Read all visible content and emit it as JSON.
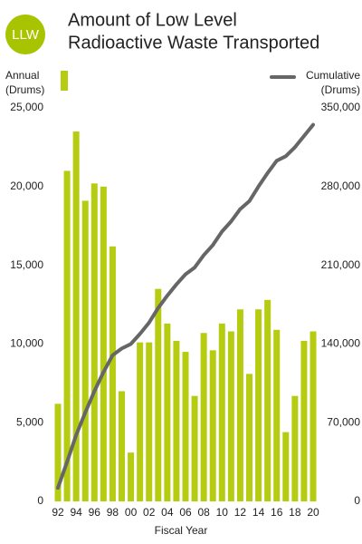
{
  "chart_data": {
    "type": "combo",
    "badge": "LLW",
    "title": [
      "Amount of Low Level",
      "Radioactive Waste Transported"
    ],
    "y_label": [
      "Annual",
      "(Drums)"
    ],
    "y2_label": [
      "Cumulative",
      "(Drums)"
    ],
    "x_label": "Fiscal Year",
    "categories": [
      "92",
      null,
      "94",
      null,
      "96",
      null,
      "98",
      null,
      "00",
      null,
      "02",
      null,
      "04",
      null,
      "06",
      null,
      "08",
      null,
      "10",
      null,
      "12",
      null,
      "14",
      null,
      "16",
      null,
      "18",
      null,
      "20"
    ],
    "series": [
      {
        "type": "bar",
        "color": "#b5cc10",
        "values": [
          6200,
          21000,
          23500,
          19100,
          20200,
          20000,
          16200,
          7000,
          3100,
          10100,
          10100,
          13500,
          11300,
          10200,
          9500,
          6700,
          10700,
          9600,
          11300,
          10800,
          12200,
          8100,
          12200,
          12800,
          10900,
          4400,
          6700,
          10200,
          10800
        ]
      },
      {
        "type": "line",
        "axis": "y2",
        "color": "#666666",
        "values": [
          12000,
          35000,
          59000,
          79000,
          98000,
          115000,
          130000,
          136000,
          140000,
          149000,
          159000,
          172000,
          183000,
          193000,
          202000,
          208000,
          219000,
          228000,
          240000,
          249000,
          260000,
          267000,
          280000,
          292000,
          303000,
          307000,
          315000,
          325000,
          335000
        ]
      }
    ],
    "ylim": [
      0,
      25000
    ],
    "yticks": [
      0,
      {
        "value": 5000,
        "label": "5,000"
      },
      {
        "value": 10000,
        "label": "10,000"
      },
      {
        "value": 15000,
        "label": "15,000"
      },
      {
        "value": 20000,
        "label": "20,000"
      },
      {
        "value": 25000,
        "label": "25,000"
      }
    ],
    "y2lim": [
      0,
      350000
    ],
    "y2ticks": [
      0,
      {
        "value": 70000,
        "label": "70,000"
      },
      {
        "value": 140000,
        "label": "140,000"
      },
      {
        "value": 210000,
        "label": "210,000"
      },
      {
        "value": 280000,
        "label": "280,000"
      },
      {
        "value": 350000,
        "label": "350,000"
      }
    ]
  }
}
